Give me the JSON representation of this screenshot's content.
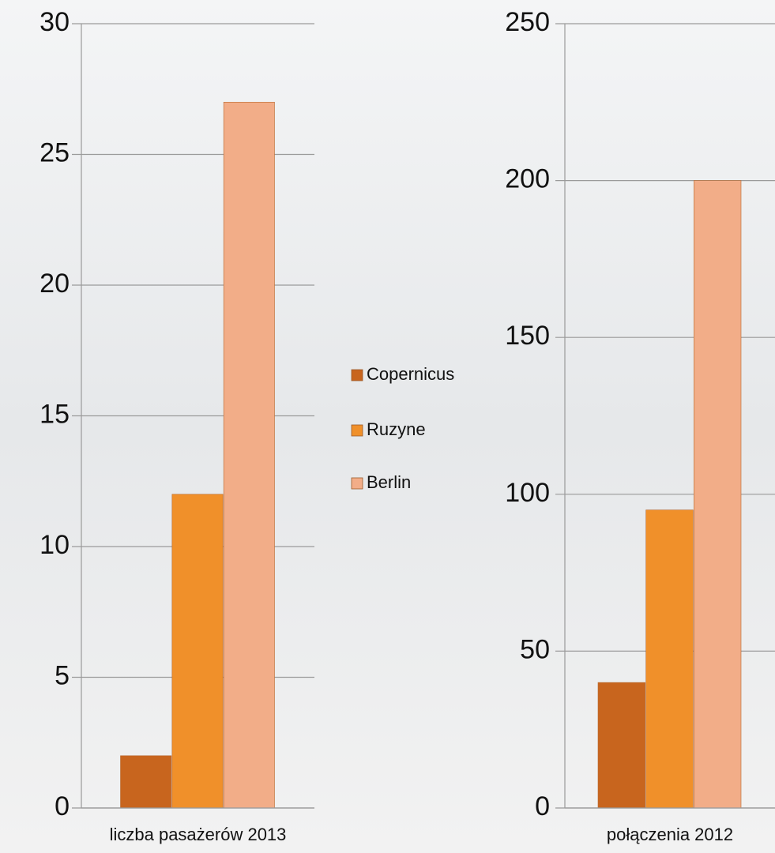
{
  "chart_data": [
    {
      "type": "bar",
      "categories": [
        "liczba pasażerów 2013"
      ],
      "series": [
        {
          "name": "Copernicus",
          "color": "#c8651e",
          "values": [
            2
          ]
        },
        {
          "name": "Ruzyne",
          "color": "#f0902a",
          "values": [
            12
          ]
        },
        {
          "name": "Berlin",
          "color": "#f2ad88",
          "values": [
            27
          ]
        }
      ],
      "ylim": [
        0,
        30
      ],
      "yticks": [
        0,
        5,
        10,
        15,
        20,
        25,
        30
      ],
      "grid": true
    },
    {
      "type": "bar",
      "categories": [
        "połączenia 2012"
      ],
      "series": [
        {
          "color": "#c8651e",
          "values": [
            40
          ]
        },
        {
          "color": "#f0902a",
          "values": [
            95
          ]
        },
        {
          "color": "#f2ad88",
          "values": [
            200
          ]
        }
      ],
      "ylim": [
        0,
        250
      ],
      "yticks": [
        0,
        50,
        100,
        150,
        200,
        250
      ],
      "grid": true
    }
  ]
}
